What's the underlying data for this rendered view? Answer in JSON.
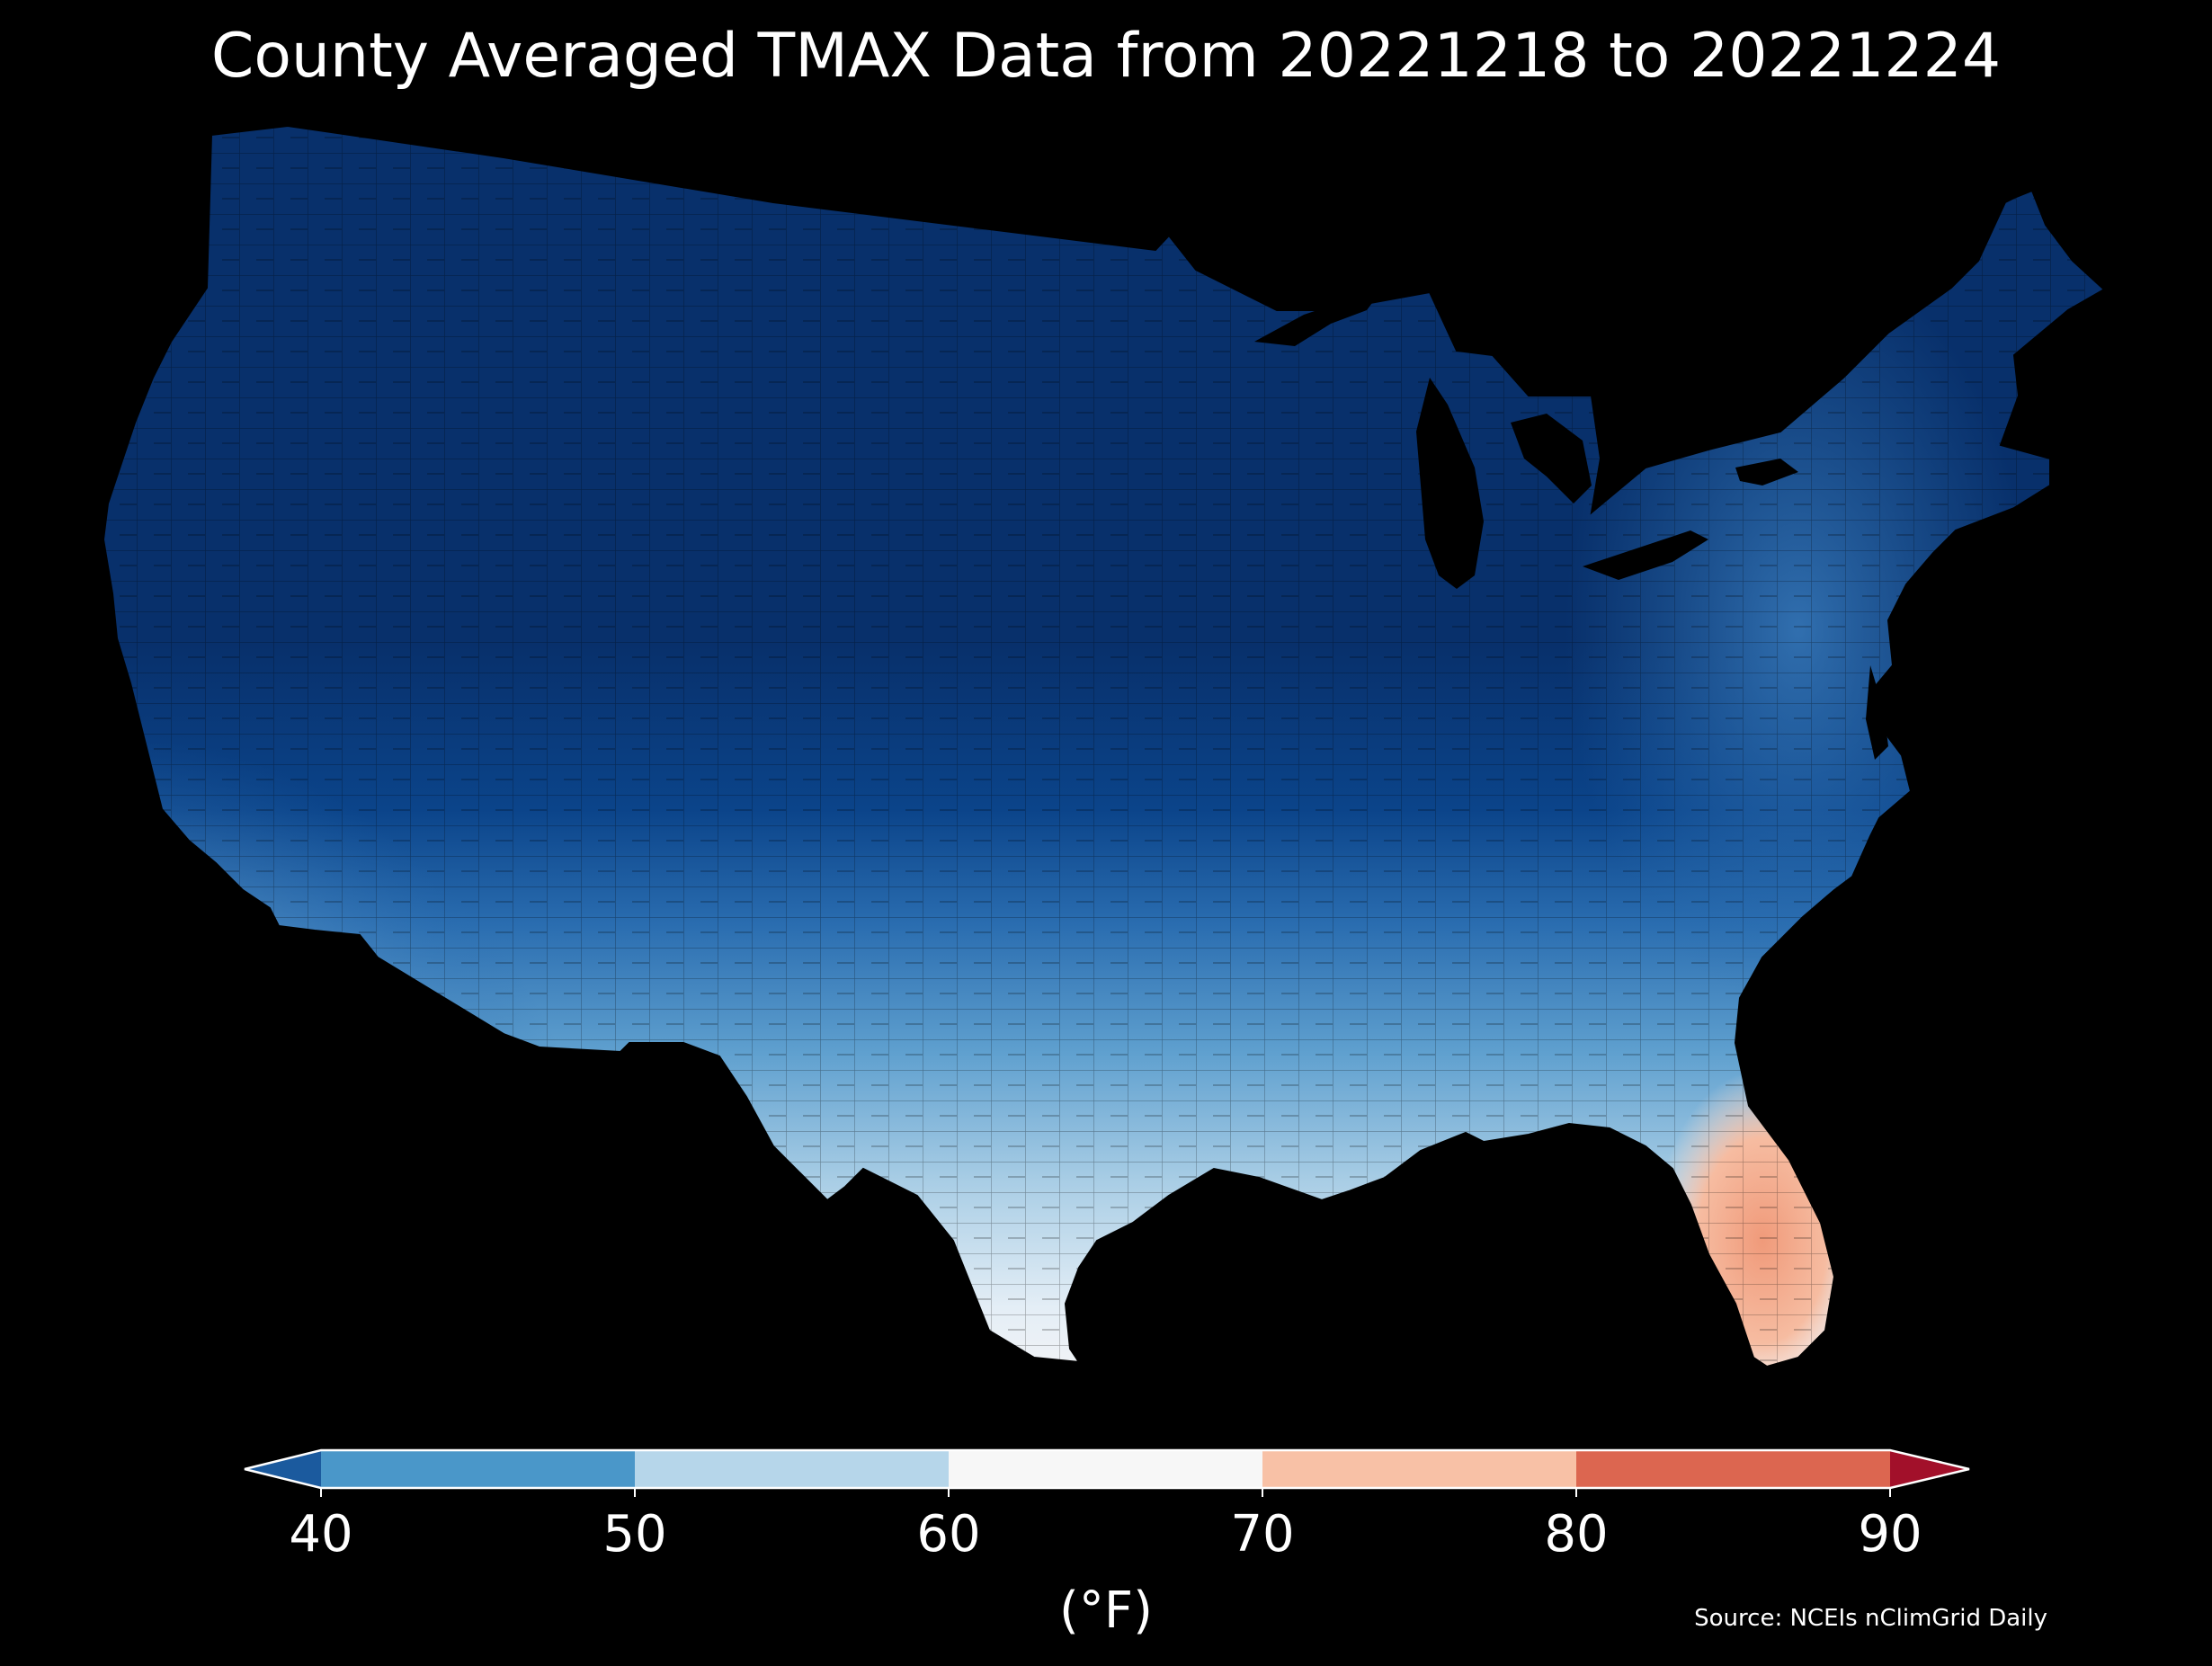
{
  "title": "County Averaged TMAX Data from 20221218 to 20221224",
  "colorbar": {
    "unit_label": "(°F)",
    "ticks": [
      "40",
      "50",
      "60",
      "70",
      "80",
      "90"
    ],
    "bins": [
      {
        "range": "<40",
        "color": "#1b5a9e"
      },
      {
        "range": "40-50",
        "color": "#4a97c9"
      },
      {
        "range": "50-60",
        "color": "#b6d6ea"
      },
      {
        "range": "60-70",
        "color": "#f7f7f7"
      },
      {
        "range": "70-80",
        "color": "#f8c1a6"
      },
      {
        "range": "80-90",
        "color": "#dc6650"
      },
      {
        "range": ">90",
        "color": "#a2102a"
      }
    ]
  },
  "source": "Source: NCEIs nClimGrid Daily",
  "map_colors": {
    "coldest": "#08306b",
    "cold": "#08519c",
    "mid_cold": "#2171b5",
    "mild": "#4a97c9",
    "cool": "#9ecae1",
    "neutral": "#f7f7f7",
    "warm": "#fdd0bd",
    "warmer": "#f4a582"
  }
}
